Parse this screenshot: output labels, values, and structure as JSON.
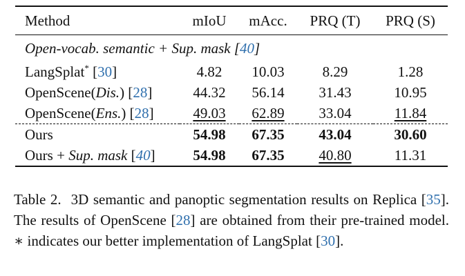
{
  "table": {
    "headers": [
      "Method",
      "mIoU",
      "mAcc.",
      "PRQ (T)",
      "PRQ (S)"
    ],
    "group": {
      "prefix": "Open-vocab. semantic + Sup. mask [",
      "ref": "40",
      "suffix": "]"
    },
    "rows": [
      {
        "name": "LangSplat",
        "name_sup": "*",
        "name_italic": "",
        "ref": "30",
        "values": [
          "4.82",
          "10.03",
          "8.29",
          "1.28"
        ],
        "bold": [
          false,
          false,
          false,
          false
        ],
        "underline": [
          false,
          false,
          false,
          false
        ]
      },
      {
        "name": "OpenScene(",
        "name_sup": "",
        "name_italic": "Dis.",
        "ref": "28",
        "values": [
          "44.32",
          "56.14",
          "31.43",
          "10.95"
        ],
        "bold": [
          false,
          false,
          false,
          false
        ],
        "underline": [
          false,
          false,
          false,
          false
        ]
      },
      {
        "name": "OpenScene(",
        "name_sup": "",
        "name_italic": "Ens.",
        "ref": "28",
        "values": [
          "49.03",
          "62.89",
          "33.04",
          "11.84"
        ],
        "bold": [
          false,
          false,
          false,
          false
        ],
        "underline": [
          true,
          true,
          false,
          true
        ]
      },
      {
        "name": "Ours",
        "name_sup": "",
        "name_italic": "",
        "ref": "",
        "values": [
          "54.98",
          "67.35",
          "43.04",
          "30.60"
        ],
        "bold": [
          true,
          true,
          true,
          true
        ],
        "underline": [
          false,
          false,
          false,
          false
        ]
      },
      {
        "name": "Ours + ",
        "name_sup": "",
        "name_italic": "Sup. mask",
        "ref": "40",
        "values": [
          "54.98",
          "67.35",
          "40.80",
          "11.31"
        ],
        "bold": [
          true,
          true,
          false,
          false
        ],
        "underline": [
          false,
          false,
          true,
          false
        ]
      }
    ]
  },
  "caption": {
    "label": "Table 2.",
    "part1": "3D semantic and panoptic segmentation results on Replica [",
    "ref1": "35",
    "part2": "].  The results of OpenScene [",
    "ref2": "28",
    "part3": "] are obtained from their pre-trained model. ∗ indicates our better implementation of LangSplat [",
    "ref3": "30",
    "part4": "]."
  }
}
